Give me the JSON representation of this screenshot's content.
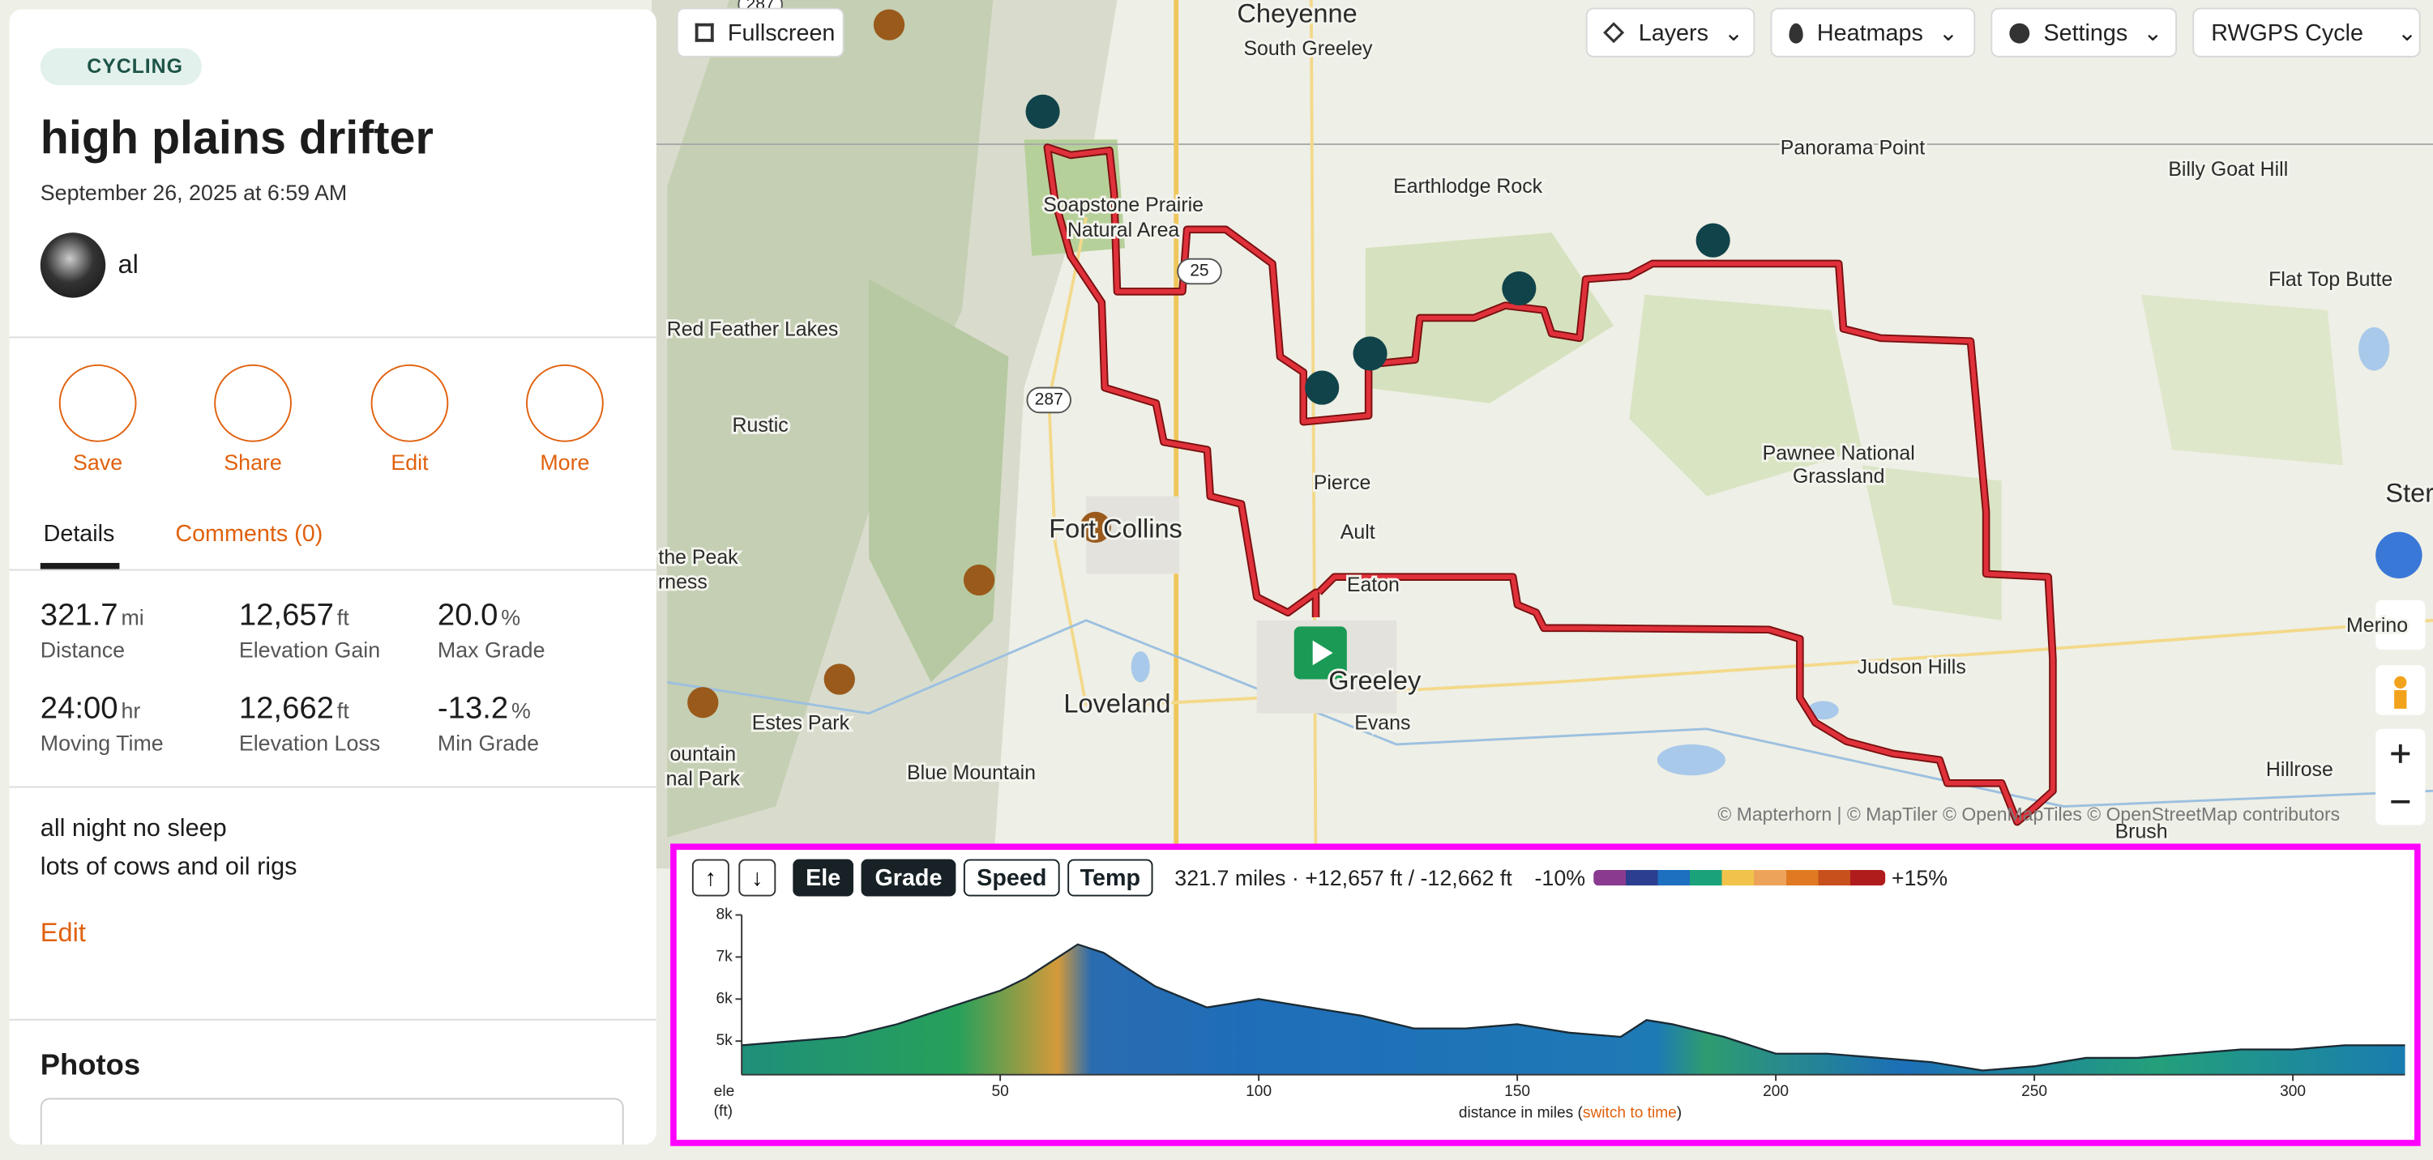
{
  "sidebar": {
    "activity": "CYCLING",
    "title": "high plains drifter",
    "date": "September 26, 2025 at 6:59 AM",
    "user": "al",
    "actions": [
      "Save",
      "Share",
      "Edit",
      "More"
    ],
    "tabs": [
      "Details",
      "Comments (0)"
    ],
    "stats": [
      {
        "value": "321.7",
        "unit": "mi",
        "label": "Distance"
      },
      {
        "value": "12,657",
        "unit": "ft",
        "label": "Elevation Gain"
      },
      {
        "value": "20.0",
        "unit": "%",
        "label": "Max Grade"
      },
      {
        "value": "24:00",
        "unit": "hr",
        "label": "Moving Time"
      },
      {
        "value": "12,662",
        "unit": "ft",
        "label": "Elevation Loss"
      },
      {
        "value": "-13.2",
        "unit": "%",
        "label": "Min Grade"
      }
    ],
    "description": [
      "all night no sleep",
      "lots of cows and oil rigs"
    ],
    "edit": "Edit",
    "photos": "Photos"
  },
  "toolbar": {
    "fullscreen": "Fullscreen",
    "layers": "Layers",
    "heatmaps": "Heatmaps",
    "settings": "Settings",
    "style": "RWGPS Cycle"
  },
  "map": {
    "labels": [
      "Cheyenne",
      "South Greeley",
      "Panorama Point",
      "Billy Goat Hill",
      "Earthlodge Rock",
      "Soapstone Prairie",
      "Natural Area",
      "Flat Top Butte",
      "Red Feather Lakes",
      "Rustic",
      "Pierce",
      "Pawnee National",
      "Grassland",
      "Ault",
      "Fort Collins",
      "Eaton",
      "the Peak",
      "rness",
      "Merino",
      "Greeley",
      "Judson Hills",
      "Loveland",
      "Evans",
      "Estes Park",
      "ountain",
      "nal Park",
      "Blue Mountain",
      "Hillrose",
      "Brush",
      "Ster"
    ],
    "shields": [
      "287",
      "25",
      "287"
    ],
    "attribution": "© Mapterhorn | © MapTiler © OpenMapTiles © OpenStreetMap contributors"
  },
  "profile": {
    "buttons": [
      "Ele",
      "Grade",
      "Speed",
      "Temp"
    ],
    "summary": "321.7 miles · +12,657 ft / -12,662 ft",
    "legend_min": "-10%",
    "legend_max": "+15%"
  },
  "chart_data": {
    "type": "area",
    "ylabel": "ele",
    "yunit": "(ft)",
    "xlabel": "distance in miles (",
    "xlabel_link": "switch to time",
    "xlabel_end": ")",
    "x": [
      0,
      10,
      20,
      30,
      40,
      50,
      55,
      60,
      65,
      70,
      75,
      80,
      90,
      100,
      110,
      120,
      130,
      140,
      150,
      160,
      170,
      175,
      180,
      190,
      200,
      210,
      220,
      230,
      240,
      250,
      260,
      270,
      280,
      290,
      300,
      310,
      321.7
    ],
    "values": [
      4900,
      5000,
      5100,
      5400,
      5800,
      6200,
      6500,
      6900,
      7300,
      7100,
      6700,
      6300,
      5800,
      6000,
      5800,
      5600,
      5300,
      5300,
      5400,
      5200,
      5100,
      5500,
      5400,
      5100,
      4700,
      4700,
      4600,
      4500,
      4300,
      4400,
      4600,
      4600,
      4700,
      4800,
      4800,
      4900,
      4900
    ],
    "color": "#1b2a33",
    "xlim": [
      0,
      321.7
    ],
    "ylim": [
      4200,
      8000
    ],
    "xticks": [
      50,
      100,
      150,
      200,
      250,
      300
    ],
    "yticks": [
      {
        "value": 5000,
        "label": "5k"
      },
      {
        "value": 6000,
        "label": "6k"
      },
      {
        "value": 7000,
        "label": "7k"
      },
      {
        "value": 8000,
        "label": "8k"
      }
    ]
  }
}
